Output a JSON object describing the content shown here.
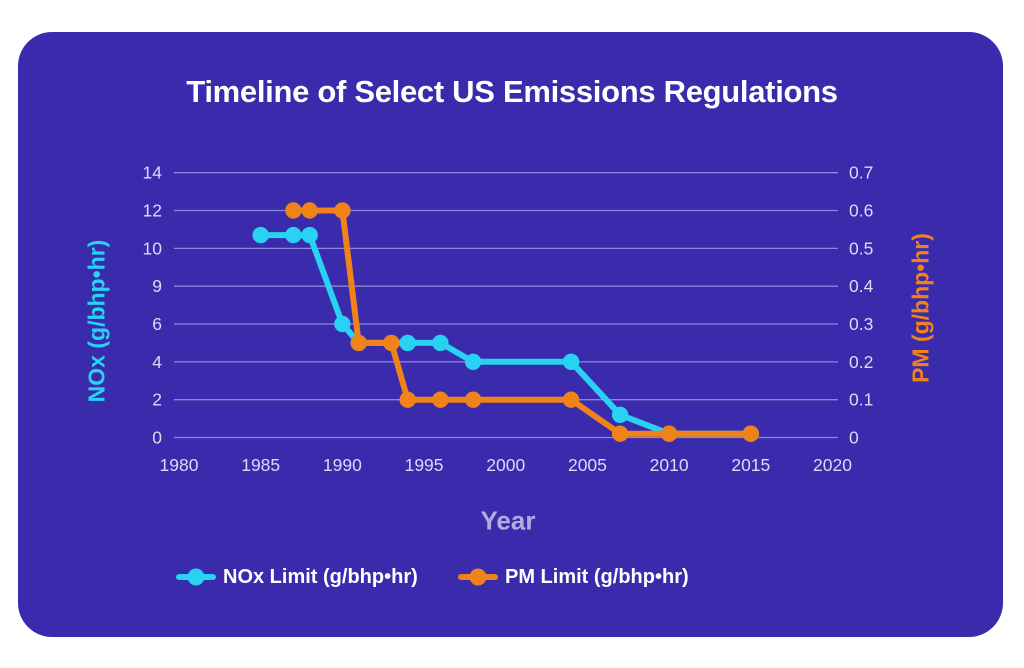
{
  "title": "Timeline of Select US Emissions Regulations",
  "colors": {
    "card_background": "#3a2bad",
    "page_background": "#ffffff",
    "title_text": "#ffffff",
    "grid_line": "#8d85d8",
    "tick_label": "#ddd9f6",
    "x_axis_title": "#b2abdf",
    "legend_text": "#ffffff",
    "nox_series": "#29d2f2",
    "pm_series": "#f0821a"
  },
  "chart_data": {
    "type": "line",
    "title": "Timeline of Select US Emissions Regulations",
    "xlabel": "Year",
    "grid": "horizontal-only",
    "legend_position": "bottom",
    "x_ticks": [
      1980,
      1985,
      1990,
      1995,
      2000,
      2005,
      2010,
      2015,
      2020
    ],
    "x_range": [
      1980,
      2020
    ],
    "left_axis": {
      "label": "NOx (g/bhp•hr)",
      "ticks": [
        0,
        2,
        4,
        6,
        9,
        10,
        12,
        14
      ],
      "scale": "non-linear: tick labels evenly spaced"
    },
    "right_axis": {
      "label": "PM (g/bhp•hr)",
      "ticks": [
        0,
        0.1,
        0.2,
        0.3,
        0.4,
        0.5,
        0.6,
        0.7
      ],
      "scale": "linear"
    },
    "series": [
      {
        "id": "nox",
        "name": "NOx Limit (g/bhp•hr)",
        "axis": "left",
        "color": "#29d2f2",
        "points": [
          [
            1985,
            10.7
          ],
          [
            1987,
            10.7
          ],
          [
            1988,
            10.7
          ],
          [
            1990,
            6
          ],
          [
            1991,
            5
          ],
          [
            1994,
            5
          ],
          [
            1996,
            5
          ],
          [
            1998,
            4
          ],
          [
            2004,
            4
          ],
          [
            2007,
            1.2
          ],
          [
            2010,
            0.2
          ],
          [
            2015,
            0.2
          ]
        ]
      },
      {
        "id": "pm",
        "name": "PM Limit (g/bhp•hr)",
        "axis": "right",
        "color": "#f0821a",
        "points": [
          [
            1987,
            0.6
          ],
          [
            1988,
            0.6
          ],
          [
            1990,
            0.6
          ],
          [
            1991,
            0.25
          ],
          [
            1993,
            0.25
          ],
          [
            1994,
            0.1
          ],
          [
            1996,
            0.1
          ],
          [
            1998,
            0.1
          ],
          [
            2004,
            0.1
          ],
          [
            2007,
            0.01
          ],
          [
            2010,
            0.01
          ],
          [
            2015,
            0.01
          ]
        ]
      }
    ]
  }
}
